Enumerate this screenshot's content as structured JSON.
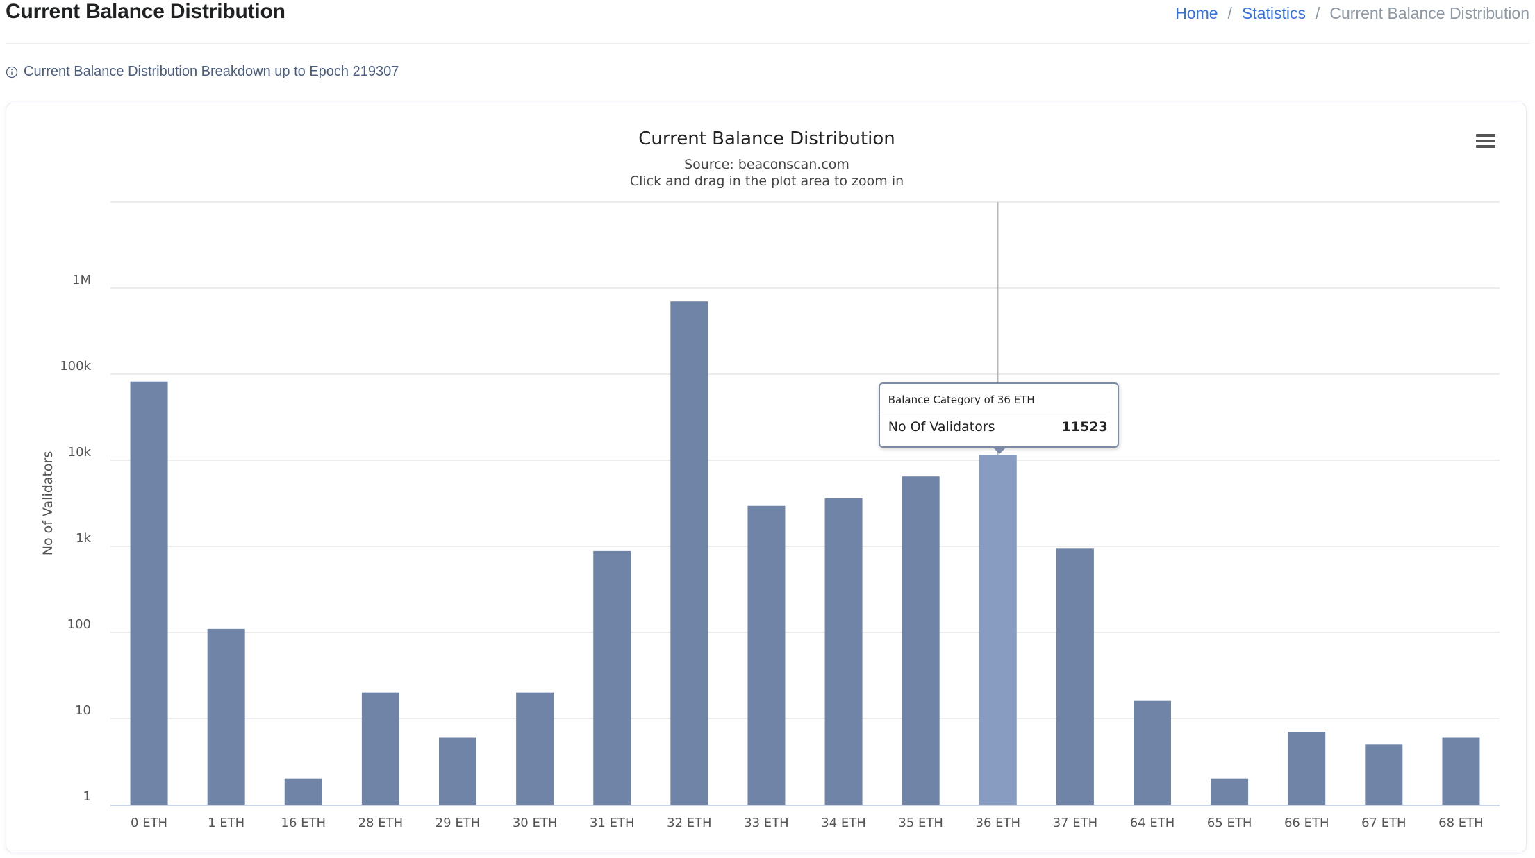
{
  "header": {
    "page_title": "Current Balance Distribution",
    "breadcrumb": {
      "home": "Home",
      "statistics": "Statistics",
      "current": "Current Balance Distribution",
      "separator": "/"
    }
  },
  "info": {
    "icon": "info-icon",
    "text": "Current Balance Distribution Breakdown up to Epoch 219307"
  },
  "chart_menu": {
    "icon": "hamburger-menu-icon"
  },
  "tooltip": {
    "header": "Balance Category of 36 ETH",
    "label": "No Of Validators",
    "value": "11523",
    "category_index": 11
  },
  "colors": {
    "bar": "#6f84a6",
    "bar_hover": "#879cc0",
    "accent": "#3372e0"
  },
  "chart_data": {
    "type": "bar",
    "title": "Current Balance Distribution",
    "subtitle": "Source: beaconscan.com",
    "subtitle2": "Click and drag in the plot area to zoom in",
    "xlabel": "",
    "ylabel": "No of Validators",
    "y_scale": "log",
    "ylim": [
      1,
      10000000
    ],
    "y_ticks": [
      {
        "value": 1,
        "label": "1"
      },
      {
        "value": 10,
        "label": "10"
      },
      {
        "value": 100,
        "label": "100"
      },
      {
        "value": 1000,
        "label": "1k"
      },
      {
        "value": 10000,
        "label": "10k"
      },
      {
        "value": 100000,
        "label": "100k"
      },
      {
        "value": 1000000,
        "label": "1M"
      }
    ],
    "grid": true,
    "categories": [
      "0 ETH",
      "1 ETH",
      "16 ETH",
      "28 ETH",
      "29 ETH",
      "30 ETH",
      "31 ETH",
      "32 ETH",
      "33 ETH",
      "34 ETH",
      "35 ETH",
      "36 ETH",
      "37 ETH",
      "64 ETH",
      "65 ETH",
      "66 ETH",
      "67 ETH",
      "68 ETH"
    ],
    "values": [
      82000,
      110,
      2,
      20,
      6,
      20,
      880,
      700000,
      2950,
      3600,
      6500,
      11523,
      940,
      16,
      2,
      7,
      5,
      6
    ]
  }
}
